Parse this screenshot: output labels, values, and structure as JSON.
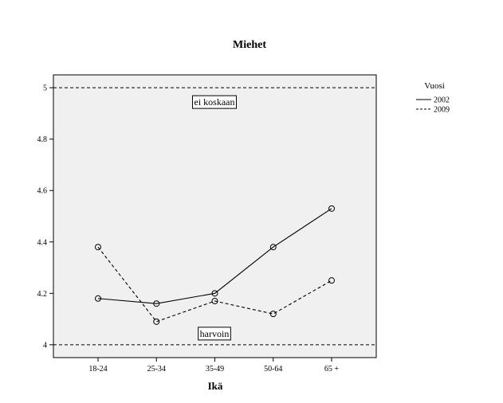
{
  "chart_data": {
    "type": "line",
    "title": "Miehet",
    "xlabel": "Ikä",
    "ylabel": "",
    "categories": [
      "18-24",
      "25-34",
      "35-49",
      "50-64",
      "65 +"
    ],
    "ylim": [
      3.95,
      5.05
    ],
    "yticks": [
      4,
      4.2,
      4.4,
      4.6,
      4.8,
      5
    ],
    "ytick_labels": [
      "4",
      "4.2",
      "4.4",
      "4.6",
      "4.8",
      "5"
    ],
    "grid": false,
    "legend": {
      "title": "Vuosi",
      "placement": "right"
    },
    "series": [
      {
        "name": "2002",
        "style": "solid",
        "values": [
          4.18,
          4.16,
          4.2,
          4.38,
          4.53
        ]
      },
      {
        "name": "2009",
        "style": "dashed",
        "values": [
          4.38,
          4.09,
          4.17,
          4.12,
          4.25
        ]
      }
    ],
    "reference_lines": [
      {
        "value": 5,
        "label": "ei koskaan",
        "style": "dashed"
      },
      {
        "value": 4,
        "label": "harvoin",
        "style": "dashed"
      }
    ],
    "colors": {
      "plot_background": "#f0f0f0",
      "line": "#000000"
    }
  }
}
